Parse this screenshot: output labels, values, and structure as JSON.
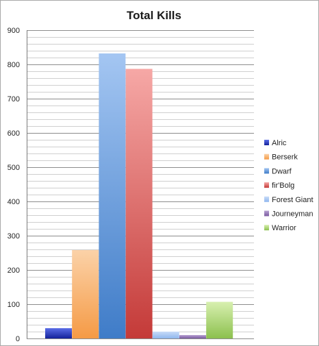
{
  "chart_data": {
    "type": "bar",
    "title": "Total Kills",
    "xlabel": "",
    "ylabel": "",
    "ylim": [
      0,
      900
    ],
    "yticks": [
      0,
      100,
      200,
      300,
      400,
      500,
      600,
      700,
      800,
      900
    ],
    "grid": true,
    "legend_position": "right",
    "series": [
      {
        "name": "Alric",
        "value": 30,
        "color_top": "#5b6ee8",
        "color_bottom": "#14229a"
      },
      {
        "name": "Berserk",
        "value": 258,
        "color_top": "#fbd2a8",
        "color_bottom": "#f59a45"
      },
      {
        "name": "Dwarf",
        "value": 832,
        "color_top": "#a4c6f2",
        "color_bottom": "#3f7cc8"
      },
      {
        "name": "fir'Bolg",
        "value": 787,
        "color_top": "#f6a8a6",
        "color_bottom": "#c43a38"
      },
      {
        "name": "Forest Giant",
        "value": 20,
        "color_top": "#c8dcf8",
        "color_bottom": "#8fb6ee"
      },
      {
        "name": "Journeyman",
        "value": 10,
        "color_top": "#b8a2d2",
        "color_bottom": "#7a5aa0"
      },
      {
        "name": "Warrior",
        "value": 107,
        "color_top": "#d8f0b0",
        "color_bottom": "#8cc04e"
      }
    ]
  }
}
